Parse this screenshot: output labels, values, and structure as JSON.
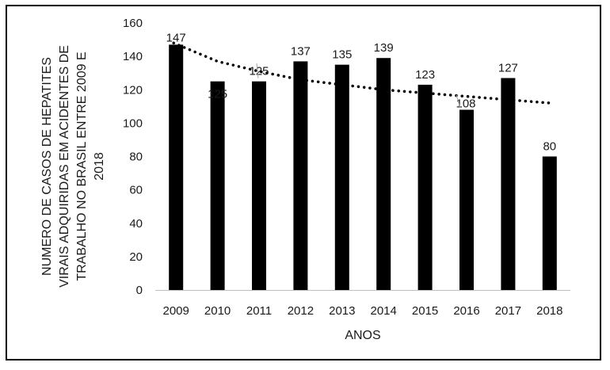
{
  "chart_data": {
    "type": "bar",
    "categories": [
      "2009",
      "2010",
      "2011",
      "2012",
      "2013",
      "2014",
      "2015",
      "2016",
      "2017",
      "2018"
    ],
    "values": [
      147,
      125,
      125,
      137,
      135,
      139,
      123,
      108,
      127,
      80
    ],
    "data_labels": [
      "147",
      "125",
      "125",
      "137",
      "135",
      "139",
      "123",
      "108",
      "127",
      "80"
    ],
    "xlabel": "ANOS",
    "ylabel": [
      "NUMERO DE CASOS DE HEPATITES",
      "VIRAIS ADQUIRIDAS EM ACIDENTES DE",
      "TRABALHO NO BRASIL  ENTRE 2009 E",
      "2018"
    ],
    "ylim": [
      0,
      160
    ],
    "yticks": [
      0,
      20,
      40,
      60,
      80,
      100,
      120,
      140,
      160
    ],
    "ytick_labels": [
      "0",
      "20",
      "40",
      "60",
      "80",
      "100",
      "120",
      "140",
      "160"
    ],
    "trendline": {
      "type": "logarithmic",
      "style": "dotted",
      "values": [
        148,
        137,
        131,
        126,
        123,
        120,
        118,
        116,
        114,
        112
      ]
    },
    "grid": false,
    "legend": "none",
    "colors": {
      "bar": "#000000",
      "trendline": "#000000",
      "axis": "#bfbfbf",
      "leader_line": "#a6a6a6",
      "text": "#1a1a1a"
    }
  }
}
